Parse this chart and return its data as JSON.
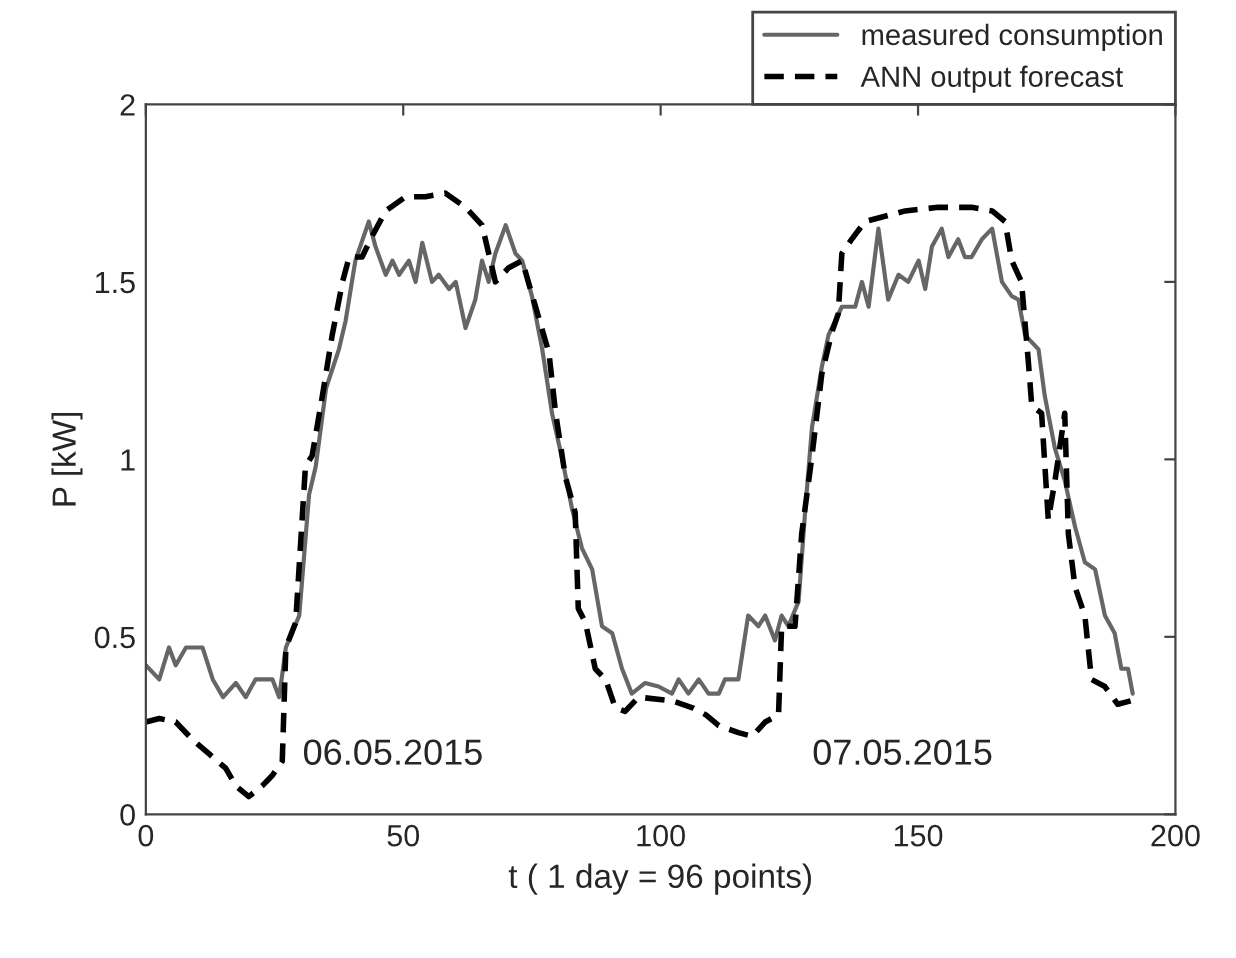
{
  "chart_data": {
    "type": "line",
    "xlabel": "t ( 1 day = 96 points)",
    "ylabel": "P [kW]",
    "xlim": [
      0,
      200
    ],
    "xticks": [
      0,
      50,
      100,
      150,
      200
    ],
    "ylim": [
      0,
      2
    ],
    "yticks": [
      0,
      0.5,
      1,
      1.5,
      2
    ],
    "grid": false,
    "legend": "top right",
    "marker": "none",
    "annotations": [
      "06.05.2015",
      "07.05.2015"
    ],
    "series": [
      {
        "name": "measured consumption",
        "color": "#666666",
        "line_style": "solid",
        "x": [
          0,
          2.6,
          4.5,
          5.8,
          7.8,
          11,
          13,
          15,
          17.5,
          19.4,
          21.3,
          24.6,
          25.9,
          27.2,
          29.8,
          31.7,
          33,
          35,
          37.5,
          38.8,
          40.7,
          43.3,
          44.6,
          46.6,
          47.9,
          49.2,
          51.1,
          52.4,
          53.7,
          55.6,
          56.9,
          58.9,
          60.2,
          62.1,
          64,
          65.3,
          66.6,
          67.9,
          69.9,
          71.8,
          73.1,
          75,
          77,
          78.9,
          80.9,
          82.8,
          84.7,
          86.7,
          88.6,
          90.6,
          92.5,
          94.4,
          97,
          99.6,
          102.2,
          103.5,
          105.4,
          107.4,
          109.3,
          111.3,
          112.5,
          115.1,
          117,
          119,
          120.3,
          122.2,
          123.5,
          124.8,
          126.8,
          128.1,
          129.4,
          131.3,
          132.6,
          135.2,
          137.8,
          139.1,
          140.4,
          142.3,
          144.2,
          146.2,
          148.1,
          150.1,
          151.4,
          152.7,
          154.6,
          155.9,
          157.8,
          159.1,
          160.4,
          162.4,
          164.4,
          166.3,
          168.2,
          169.5,
          170.8,
          173.4,
          174.6,
          176.6,
          178.5,
          180.5,
          182.4,
          184.4,
          186.3,
          188.2,
          189.5,
          190.8,
          191.7
        ],
        "values": [
          0.42,
          0.38,
          0.47,
          0.42,
          0.47,
          0.47,
          0.38,
          0.33,
          0.37,
          0.33,
          0.38,
          0.38,
          0.33,
          0.47,
          0.56,
          0.9,
          0.98,
          1.2,
          1.31,
          1.39,
          1.56,
          1.67,
          1.6,
          1.52,
          1.56,
          1.52,
          1.56,
          1.5,
          1.61,
          1.5,
          1.52,
          1.48,
          1.5,
          1.37,
          1.45,
          1.56,
          1.5,
          1.58,
          1.66,
          1.58,
          1.56,
          1.46,
          1.31,
          1.13,
          1.0,
          0.86,
          0.75,
          0.69,
          0.53,
          0.51,
          0.41,
          0.34,
          0.37,
          0.36,
          0.34,
          0.38,
          0.34,
          0.38,
          0.34,
          0.34,
          0.38,
          0.38,
          0.56,
          0.53,
          0.56,
          0.49,
          0.56,
          0.53,
          0.6,
          0.86,
          1.09,
          1.26,
          1.35,
          1.43,
          1.43,
          1.5,
          1.43,
          1.65,
          1.45,
          1.52,
          1.5,
          1.56,
          1.48,
          1.6,
          1.65,
          1.57,
          1.62,
          1.57,
          1.57,
          1.62,
          1.65,
          1.5,
          1.46,
          1.45,
          1.35,
          1.31,
          1.18,
          1.03,
          0.94,
          0.81,
          0.71,
          0.69,
          0.56,
          0.51,
          0.41,
          0.41,
          0.34
        ]
      },
      {
        "name": "ANN output forecast",
        "color": "#000000",
        "line_style": "dashed",
        "x": [
          0,
          2.6,
          5.8,
          9.1,
          12.3,
          15.5,
          17.5,
          20,
          22.6,
          24.6,
          26.5,
          27.2,
          29.1,
          31,
          32.3,
          34.3,
          36.2,
          38.2,
          39.5,
          42,
          44,
          46.6,
          50.5,
          54.3,
          58.2,
          62.1,
          65.3,
          66.6,
          67.9,
          70.5,
          73.1,
          75.7,
          78.3,
          79.6,
          81.5,
          83.4,
          84,
          85.4,
          87.3,
          89.3,
          91.2,
          93.1,
          95.7,
          102.2,
          106.2,
          108.8,
          111.3,
          115.1,
          117.8,
          120.3,
          122.9,
          123.5,
          126.1,
          127.4,
          129.4,
          131.3,
          133.3,
          134.5,
          135.2,
          137.1,
          139.7,
          142.3,
          147.5,
          153.9,
          160.4,
          164.4,
          166.9,
          168.2,
          170.1,
          171.4,
          172.1,
          174,
          175.3,
          176.6,
          178.5,
          179.2,
          180.5,
          182.4,
          183.7,
          186.3,
          188.8,
          191.4
        ],
        "values": [
          0.26,
          0.27,
          0.26,
          0.21,
          0.17,
          0.13,
          0.08,
          0.05,
          0.08,
          0.11,
          0.15,
          0.47,
          0.54,
          0.98,
          1.01,
          1.18,
          1.35,
          1.5,
          1.57,
          1.57,
          1.63,
          1.7,
          1.74,
          1.74,
          1.75,
          1.71,
          1.66,
          1.58,
          1.5,
          1.54,
          1.56,
          1.43,
          1.3,
          1.13,
          0.95,
          0.85,
          0.58,
          0.54,
          0.41,
          0.38,
          0.3,
          0.29,
          0.33,
          0.32,
          0.3,
          0.28,
          0.25,
          0.23,
          0.22,
          0.26,
          0.28,
          0.53,
          0.53,
          0.79,
          1.01,
          1.24,
          1.36,
          1.41,
          1.58,
          1.62,
          1.67,
          1.68,
          1.7,
          1.71,
          1.71,
          1.7,
          1.67,
          1.56,
          1.5,
          1.28,
          1.15,
          1.13,
          0.83,
          0.94,
          1.13,
          0.79,
          0.64,
          0.56,
          0.38,
          0.36,
          0.31,
          0.32
        ]
      }
    ]
  }
}
